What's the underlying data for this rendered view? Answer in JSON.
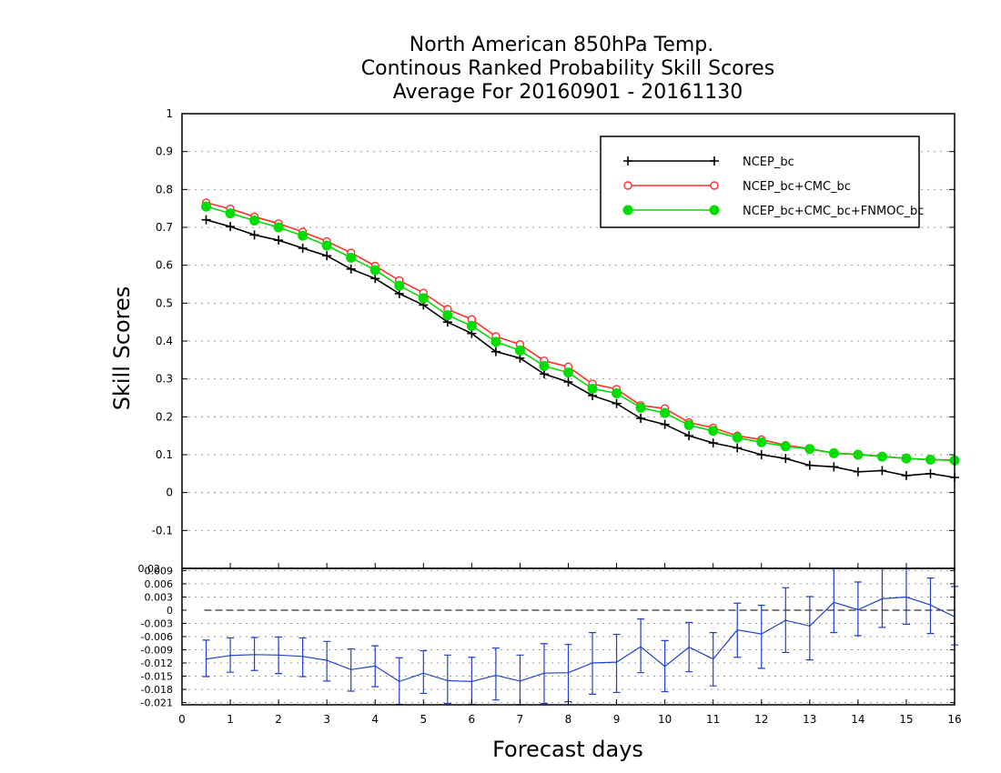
{
  "chart_data": [
    {
      "type": "line",
      "title_lines": [
        "North American 850hPa Temp.",
        "Continous Ranked Probability Skill Scores",
        "Average For 20160901 - 20161130"
      ],
      "xlabel": "Forecast days",
      "ylabel": "Skill Scores",
      "xlim": [
        0,
        16
      ],
      "ylim": [
        -0.2,
        1
      ],
      "x_ticks": [
        "0",
        "1",
        "2",
        "3",
        "4",
        "5",
        "6",
        "7",
        "8",
        "9",
        "10",
        "11",
        "12",
        "13",
        "14",
        "15",
        "16"
      ],
      "y_ticks": [
        "-0.1",
        "0",
        "0.1",
        "0.2",
        "0.3",
        "0.4",
        "0.5",
        "0.6",
        "0.7",
        "0.8",
        "0.9",
        "1"
      ],
      "grid": true,
      "legend_position": "top-right",
      "x": [
        0.5,
        1,
        1.5,
        2,
        2.5,
        3,
        3.5,
        4,
        4.5,
        5,
        5.5,
        6,
        6.5,
        7,
        7.5,
        8,
        8.5,
        9,
        9.5,
        10,
        10.5,
        11,
        11.5,
        12,
        12.5,
        13,
        13.5,
        14,
        14.5,
        15,
        15.5,
        16
      ],
      "series": [
        {
          "name": "NCEP_bc",
          "color": "#000000",
          "marker": "plus",
          "values": [
            0.72,
            0.702,
            0.68,
            0.666,
            0.645,
            0.625,
            0.59,
            0.565,
            0.525,
            0.495,
            0.45,
            0.42,
            0.372,
            0.355,
            0.313,
            0.292,
            0.256,
            0.235,
            0.196,
            0.18,
            0.15,
            0.131,
            0.118,
            0.1,
            0.09,
            0.072,
            0.068,
            0.055,
            0.058,
            0.045,
            0.05,
            0.04
          ]
        },
        {
          "name": "NCEP_bc+CMC_bc",
          "color": "#ff3030",
          "marker": "open-circle",
          "values": [
            0.765,
            0.749,
            0.728,
            0.71,
            0.688,
            0.663,
            0.633,
            0.598,
            0.56,
            0.527,
            0.484,
            0.457,
            0.412,
            0.391,
            0.348,
            0.332,
            0.287,
            0.273,
            0.23,
            0.222,
            0.185,
            0.171,
            0.15,
            0.14,
            0.125,
            0.116,
            0.104,
            0.101,
            0.096,
            0.09,
            0.087,
            0.086
          ]
        },
        {
          "name": "NCEP_bc+CMC_bc+FNMOC_bc",
          "color": "#00dd00",
          "marker": "filled-circle",
          "values": [
            0.755,
            0.737,
            0.718,
            0.7,
            0.678,
            0.652,
            0.62,
            0.587,
            0.546,
            0.513,
            0.468,
            0.44,
            0.398,
            0.375,
            0.334,
            0.317,
            0.274,
            0.262,
            0.224,
            0.21,
            0.178,
            0.163,
            0.145,
            0.133,
            0.122,
            0.115,
            0.104,
            0.1,
            0.095,
            0.09,
            0.087,
            0.085
          ]
        }
      ]
    },
    {
      "type": "line",
      "title": "",
      "xlabel": "",
      "ylabel": "",
      "xlim": [
        0,
        16
      ],
      "ylim": [
        -0.0215,
        0.0095
      ],
      "y_ticks": [
        "-0.021",
        "-0.018",
        "-0.015",
        "-0.012",
        "-0.009",
        "-0.006",
        "-0.003",
        "0",
        "0.003",
        "0.006",
        "0.009"
      ],
      "top_edge_label": "0.02",
      "grid": true,
      "zero_line": true,
      "x": [
        0.5,
        1,
        1.5,
        2,
        2.5,
        3,
        3.5,
        4,
        4.5,
        5,
        5.5,
        6,
        6.5,
        7,
        7.5,
        8,
        8.5,
        9,
        9.5,
        10,
        10.5,
        11,
        11.5,
        12,
        12.5,
        13,
        13.5,
        14,
        14.5,
        15,
        15.5,
        16
      ],
      "series": [
        {
          "name": "",
          "color": "#2040d0",
          "values": [
            -0.0111,
            -0.0103,
            -0.0101,
            -0.0102,
            -0.0105,
            -0.0114,
            -0.0135,
            -0.0127,
            -0.0162,
            -0.0143,
            -0.016,
            -0.0162,
            -0.0148,
            -0.0161,
            -0.0143,
            -0.0142,
            -0.012,
            -0.0118,
            -0.0083,
            -0.0128,
            -0.0084,
            -0.0111,
            -0.0045,
            -0.0054,
            -0.0023,
            -0.0036,
            0.0018,
            0.0001,
            0.0026,
            0.003,
            0.0012,
            -0.0015
          ],
          "error_low": [
            -0.0151,
            -0.0141,
            -0.0137,
            -0.0144,
            -0.0151,
            -0.0161,
            -0.0184,
            -0.0174,
            -0.0214,
            -0.0189,
            -0.0212,
            -0.0214,
            -0.0204,
            -0.0215,
            -0.0212,
            -0.0208,
            -0.0191,
            -0.0187,
            -0.0142,
            -0.0185,
            -0.014,
            -0.0172,
            -0.0107,
            -0.0132,
            -0.0096,
            -0.0113,
            -0.0051,
            -0.0058,
            -0.0039,
            -0.0032,
            -0.0053,
            -0.0079
          ],
          "error_high": [
            -0.0068,
            -0.0063,
            -0.0062,
            -0.0061,
            -0.0063,
            -0.0071,
            -0.0088,
            -0.0081,
            -0.0108,
            -0.0092,
            -0.0102,
            -0.0107,
            -0.0086,
            -0.0102,
            -0.0076,
            -0.0078,
            -0.0051,
            -0.0055,
            -0.002,
            -0.0069,
            -0.0028,
            -0.0051,
            0.0016,
            0.0011,
            0.0051,
            0.0031,
            0.0096,
            0.0064,
            0.0099,
            0.0094,
            0.0073,
            0.0054
          ]
        }
      ]
    }
  ]
}
